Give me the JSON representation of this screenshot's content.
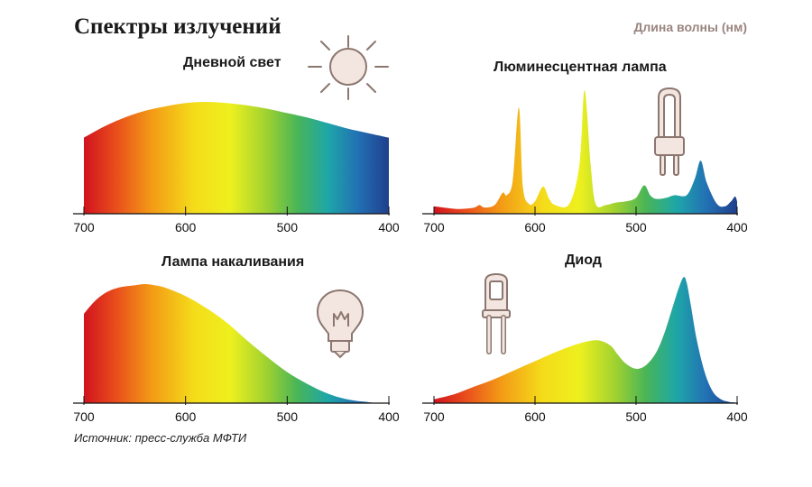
{
  "header": {
    "title": "Спектры излучений",
    "wavelength_label": "Длина волны (нм)"
  },
  "source": "Источник: пресс-служба МФТИ",
  "colors": {
    "icon": "#f3e6e0",
    "icon_stroke": "#8c7770",
    "axis": "#111111",
    "title": "#1a1a1a",
    "wl_label": "#9a857f"
  },
  "chart_data": [
    {
      "id": "daylight",
      "type": "area",
      "title": "Дневной свет",
      "xlabel": "Длина волны (нм)",
      "x_ticks": [
        700,
        600,
        500,
        400
      ],
      "xlim": [
        700,
        400
      ],
      "ylim": [
        0,
        1
      ],
      "series": [
        {
          "name": "Дневной свет",
          "x": [
            700,
            680,
            660,
            640,
            620,
            600,
            580,
            560,
            540,
            520,
            500,
            480,
            460,
            440,
            420,
            400
          ],
          "y": [
            0.68,
            0.78,
            0.86,
            0.92,
            0.96,
            0.99,
            1.0,
            0.99,
            0.97,
            0.94,
            0.9,
            0.86,
            0.81,
            0.76,
            0.72,
            0.68
          ]
        }
      ]
    },
    {
      "id": "fluorescent",
      "type": "area",
      "title": "Люминесцентная лампа",
      "xlabel": "Длина волны (нм)",
      "x_ticks": [
        700,
        600,
        500,
        400
      ],
      "xlim": [
        700,
        400
      ],
      "ylim": [
        0,
        1
      ],
      "series": [
        {
          "name": "Люминесцентная лампа",
          "x": [
            700,
            680,
            670,
            660,
            655,
            650,
            640,
            632,
            628,
            622,
            616,
            612,
            606,
            600,
            592,
            586,
            580,
            566,
            556,
            551,
            545,
            540,
            530,
            520,
            510,
            500,
            492,
            486,
            480,
            470,
            462,
            450,
            442,
            436,
            430,
            420,
            412,
            406,
            402,
            400
          ],
          "y": [
            0.06,
            0.04,
            0.04,
            0.05,
            0.07,
            0.05,
            0.07,
            0.17,
            0.15,
            0.27,
            0.86,
            0.22,
            0.08,
            0.1,
            0.22,
            0.12,
            0.07,
            0.08,
            0.4,
            1.0,
            0.4,
            0.08,
            0.07,
            0.09,
            0.1,
            0.13,
            0.23,
            0.15,
            0.12,
            0.13,
            0.15,
            0.15,
            0.28,
            0.43,
            0.25,
            0.08,
            0.06,
            0.1,
            0.14,
            0.1
          ]
        }
      ]
    },
    {
      "id": "incandescent",
      "type": "area",
      "title": "Лампа накаливания",
      "xlabel": "Длина волны (нм)",
      "x_ticks": [
        700,
        600,
        500,
        400
      ],
      "xlim": [
        700,
        400
      ],
      "ylim": [
        0,
        1
      ],
      "series": [
        {
          "name": "Лампа накаливания",
          "x": [
            700,
            690,
            680,
            670,
            660,
            650,
            640,
            630,
            620,
            600,
            580,
            560,
            540,
            520,
            500,
            480,
            460,
            440,
            420,
            410,
            400
          ],
          "y": [
            0.75,
            0.85,
            0.92,
            0.96,
            0.98,
            0.99,
            1.0,
            0.99,
            0.97,
            0.9,
            0.8,
            0.68,
            0.53,
            0.39,
            0.26,
            0.16,
            0.08,
            0.03,
            0.008,
            0.002,
            0.0
          ]
        }
      ]
    },
    {
      "id": "led",
      "type": "area",
      "title": "Диод",
      "xlabel": "Длина волны (нм)",
      "x_ticks": [
        700,
        600,
        500,
        400
      ],
      "xlim": [
        700,
        400
      ],
      "ylim": [
        0,
        1
      ],
      "series": [
        {
          "name": "Диод",
          "x": [
            700,
            680,
            660,
            640,
            620,
            600,
            580,
            560,
            545,
            535,
            525,
            518,
            510,
            500,
            490,
            480,
            472,
            464,
            458,
            453,
            450,
            446,
            440,
            432,
            424,
            416,
            408,
            402
          ],
          "y": [
            0.03,
            0.07,
            0.13,
            0.19,
            0.26,
            0.33,
            0.4,
            0.46,
            0.49,
            0.49,
            0.45,
            0.38,
            0.31,
            0.27,
            0.3,
            0.4,
            0.55,
            0.75,
            0.9,
            0.99,
            0.95,
            0.78,
            0.5,
            0.24,
            0.09,
            0.03,
            0.01,
            0.005
          ]
        }
      ]
    }
  ]
}
